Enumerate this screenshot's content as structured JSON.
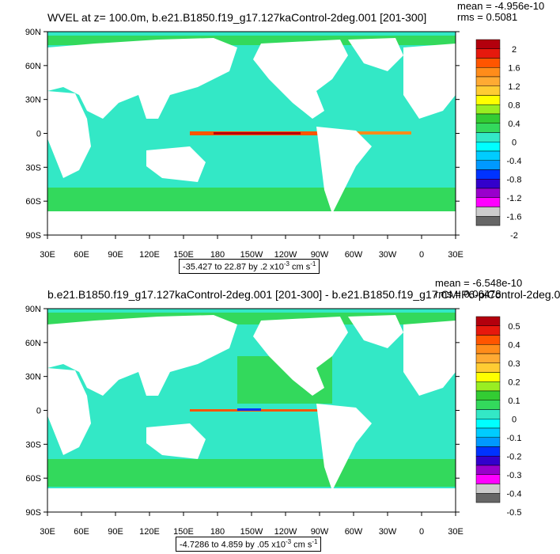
{
  "panels": [
    {
      "title": "WVEL at z= 100.0m, b.e21.B1850.f19_g17.127kaControl-2deg.001 [201-300]",
      "mean": "mean = -4.956e-10",
      "rms": "rms = 0.5081",
      "range_prefix": "-35.427 to 22.87 by .2 x10",
      "range_exp": "-3",
      "range_unit": " cm s",
      "range_unit_exp": "-1",
      "lat_labels": [
        "90N",
        "60N",
        "30N",
        "0",
        "30S",
        "60S",
        "90S"
      ],
      "lon_labels": [
        "30E",
        "60E",
        "90E",
        "120E",
        "150E",
        "180",
        "150W",
        "120W",
        "90W",
        "60W",
        "30W",
        "0",
        "30E"
      ],
      "colorbar_labels": [
        "2",
        "1.6",
        "1.2",
        "0.8",
        "0.4",
        "0",
        "-0.4",
        "-0.8",
        "-1.2",
        "-1.6",
        "-2"
      ]
    },
    {
      "title": "b.e21.B1850.f19_g17.127kaControl-2deg.001 [201-300] - b.e21.B1850.f19_g17.CMIP6-piControl-2deg.0",
      "mean": "mean = -6.548e-10",
      "rms": "rms = 0.06478",
      "range_prefix": "-4.7286 to 4.859 by .05 x10",
      "range_exp": "-3",
      "range_unit": " cm s",
      "range_unit_exp": "-1",
      "lat_labels": [
        "90N",
        "60N",
        "30N",
        "0",
        "30S",
        "60S",
        "90S"
      ],
      "lon_labels": [
        "30E",
        "60E",
        "90E",
        "120E",
        "150E",
        "180",
        "150W",
        "120W",
        "90W",
        "60W",
        "30W",
        "0",
        "30E"
      ],
      "colorbar_labels": [
        "0.5",
        "0.4",
        "0.3",
        "0.2",
        "0.1",
        "0",
        "-0.1",
        "-0.2",
        "-0.3",
        "-0.4",
        "-0.5"
      ]
    }
  ],
  "colors": {
    "ocean_main": "#33e8c6",
    "ocean_green": "#33d95c",
    "land": "#ffffff",
    "colorbar": [
      "#b3000d",
      "#e6190d",
      "#ff5500",
      "#ff8c1a",
      "#ffaa33",
      "#ffcc33",
      "#ffff00",
      "#99ee22",
      "#33cc33",
      "#33d95c",
      "#33e8c6",
      "#00ffff",
      "#00ccff",
      "#0099ff",
      "#0033ff",
      "#3300cc",
      "#9900cc",
      "#ff00ff",
      "#cccccc",
      "#666666"
    ]
  }
}
